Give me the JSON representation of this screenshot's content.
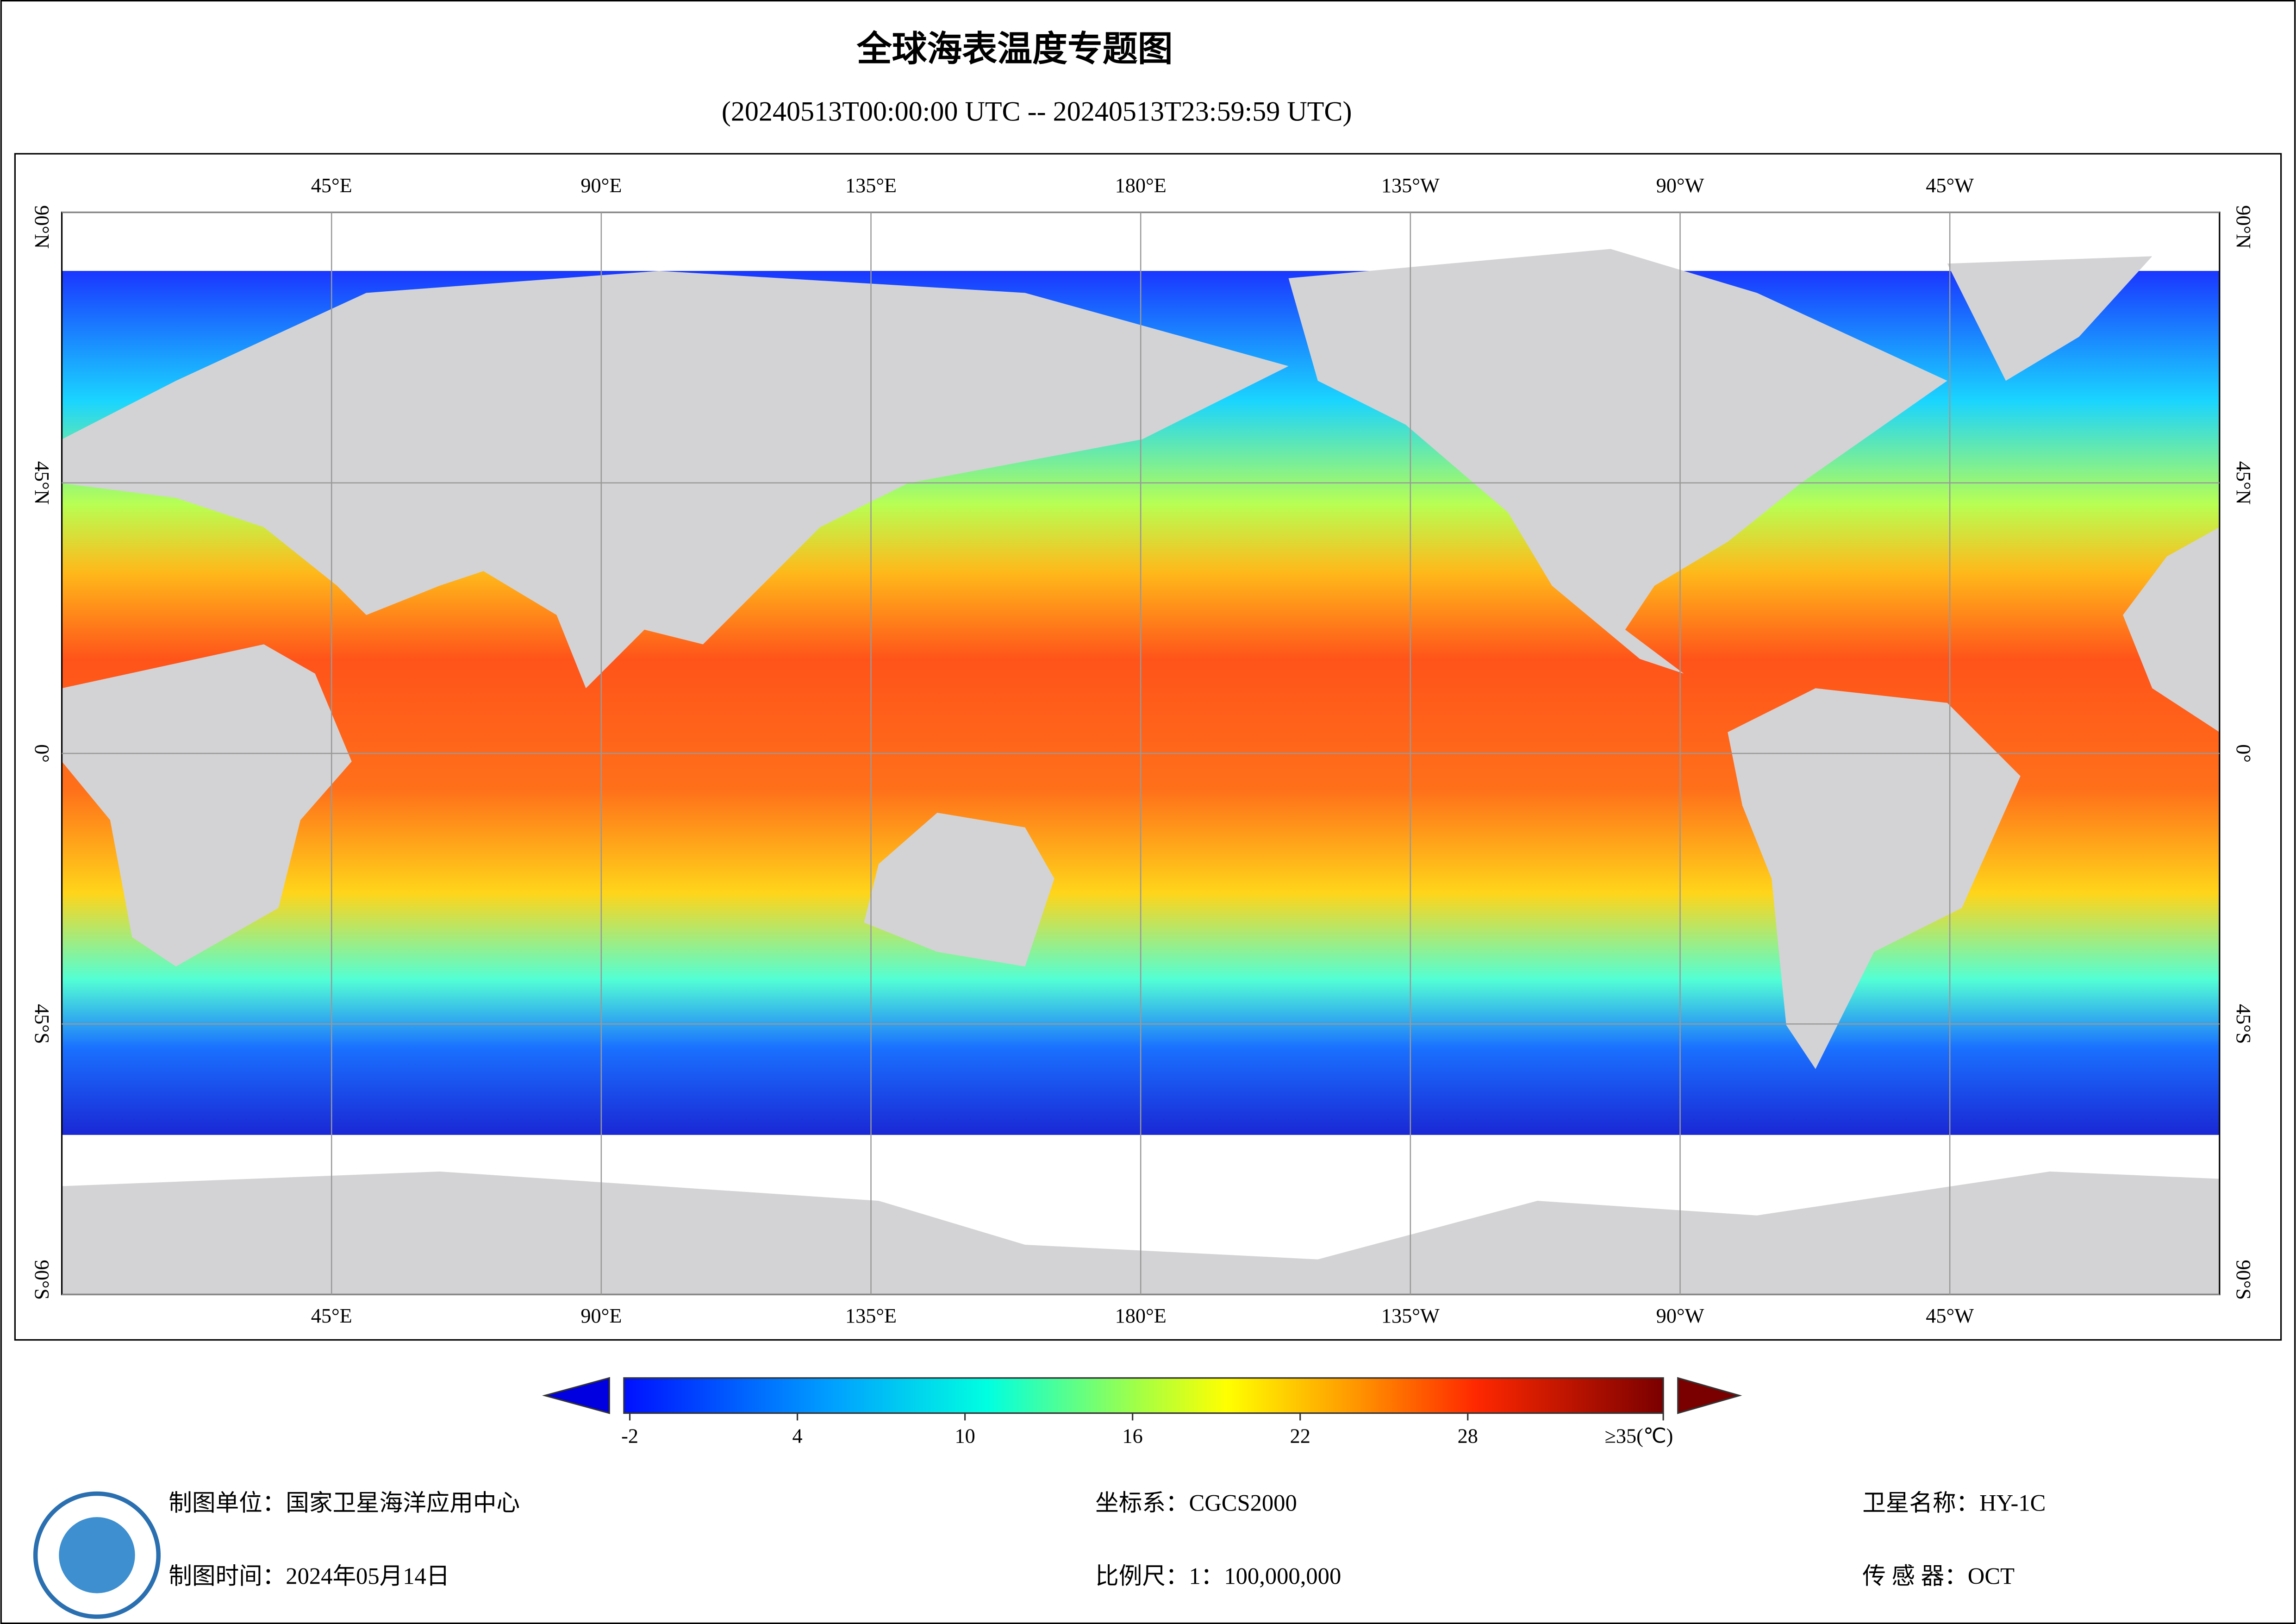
{
  "header": {
    "title": "全球海表温度专题图",
    "subtitle": "(20240513T00:00:00 UTC -- 20240513T23:59:59 UTC)"
  },
  "map": {
    "xlim": [
      0,
      360
    ],
    "ylim": [
      -90,
      90
    ],
    "xticks": [
      {
        "value": 45,
        "label": "45°E"
      },
      {
        "value": 90,
        "label": "90°E"
      },
      {
        "value": 135,
        "label": "135°E"
      },
      {
        "value": 180,
        "label": "180°E"
      },
      {
        "value": -135,
        "label": "135°W"
      },
      {
        "value": -90,
        "label": "90°W"
      },
      {
        "value": -45,
        "label": "45°W"
      }
    ],
    "yticks": [
      {
        "value": 90,
        "label": "90°N"
      },
      {
        "value": 45,
        "label": "45°N"
      },
      {
        "value": 0,
        "label": "0°"
      },
      {
        "value": -45,
        "label": "45°S"
      },
      {
        "value": -90,
        "label": "90°S"
      }
    ]
  },
  "colorbar": {
    "range": [
      -2,
      35
    ],
    "ticks": [
      -2,
      4,
      10,
      16,
      22,
      28,
      {
        "value": 35,
        "label": "≥35(℃)"
      }
    ]
  },
  "footer": {
    "unit": "制图单位：国家卫星海洋应用中心",
    "date": "制图时间：2024年05月14日",
    "crs": "坐标系：CGCS2000",
    "scale": "比例尺：1：100,000,000",
    "satellite": "卫星名称：HY-1C",
    "sensor": "传 感 器：OCT"
  }
}
